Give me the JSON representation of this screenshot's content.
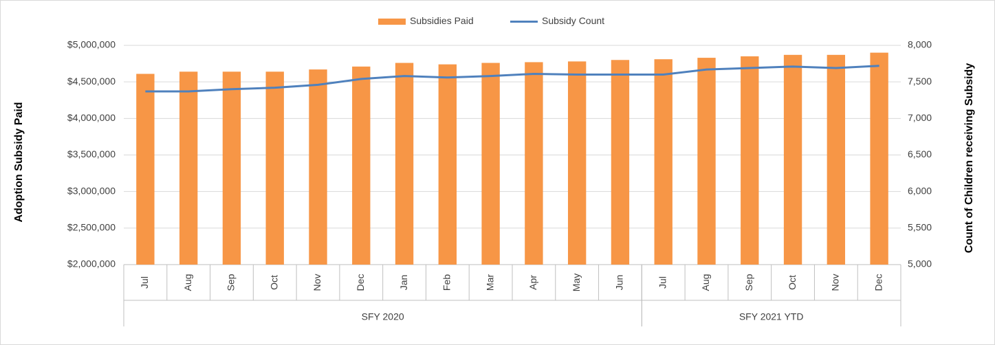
{
  "chart_data": {
    "type": "bar_line",
    "groups": [
      {
        "name": "SFY 2020",
        "months": [
          "Jul",
          "Aug",
          "Sep",
          "Oct",
          "Nov",
          "Dec",
          "Jan",
          "Feb",
          "Mar",
          "Apr",
          "May",
          "Jun"
        ]
      },
      {
        "name": "SFY 2021 YTD",
        "months": [
          "Jul",
          "Aug",
          "Sep",
          "Oct",
          "Nov",
          "Dec"
        ]
      }
    ],
    "series": [
      {
        "name": "Subsidies Paid",
        "type": "bar",
        "axis": "y",
        "color": "#f79646",
        "values": [
          4610000,
          4640000,
          4640000,
          4640000,
          4670000,
          4710000,
          4760000,
          4740000,
          4760000,
          4770000,
          4780000,
          4800000,
          4810000,
          4830000,
          4850000,
          4870000,
          4870000,
          4900000
        ]
      },
      {
        "name": "Subsidy Count",
        "type": "line",
        "axis": "y2",
        "color": "#4f81bd",
        "values": [
          7370,
          7370,
          7400,
          7420,
          7460,
          7540,
          7580,
          7560,
          7580,
          7610,
          7600,
          7600,
          7600,
          7670,
          7690,
          7710,
          7690,
          7720
        ]
      }
    ],
    "ylabel": "Adoption  Subsidy Paid",
    "y2label": "Count of Children  receiving Subsidy",
    "ylim": [
      2000000,
      5000000
    ],
    "yticks": [
      {
        "value": 2000000,
        "label": "$2,000,000"
      },
      {
        "value": 2500000,
        "label": "$2,500,000"
      },
      {
        "value": 3000000,
        "label": "$3,000,000"
      },
      {
        "value": 3500000,
        "label": "$3,500,000"
      },
      {
        "value": 4000000,
        "label": "$4,000,000"
      },
      {
        "value": 4500000,
        "label": "$4,500,000"
      },
      {
        "value": 5000000,
        "label": "$5,000,000"
      }
    ],
    "y2lim": [
      5000,
      8000
    ],
    "y2ticks": [
      {
        "value": 5000,
        "label": "5,000"
      },
      {
        "value": 5500,
        "label": "5,500"
      },
      {
        "value": 6000,
        "label": "6,000"
      },
      {
        "value": 6500,
        "label": "6,500"
      },
      {
        "value": 7000,
        "label": "7,000"
      },
      {
        "value": 7500,
        "label": "7,500"
      },
      {
        "value": 8000,
        "label": "8,000"
      }
    ],
    "grid": true,
    "legend": "top"
  }
}
